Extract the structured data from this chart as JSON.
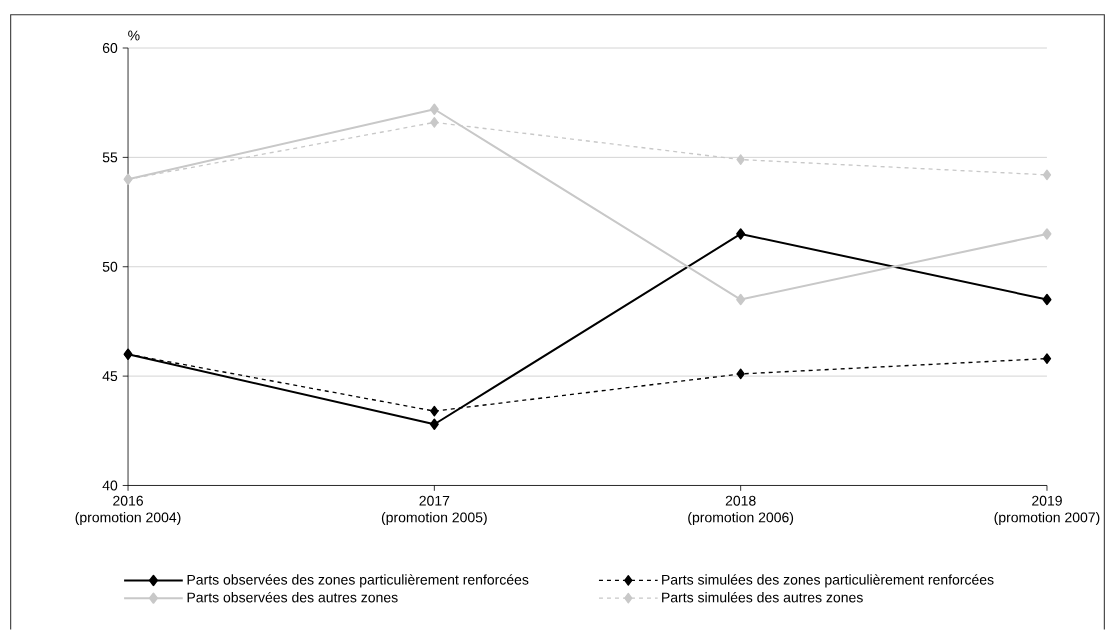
{
  "chart_data": {
    "type": "line",
    "ylabel": "%",
    "categories": [
      "2016\n(promotion 2004)",
      "2017\n(promotion 2005)",
      "2018\n(promotion 2006)",
      "2019\n(promotion 2007)"
    ],
    "ylim": [
      40,
      60
    ],
    "yticks": [
      40,
      45,
      50,
      55,
      60
    ],
    "grid": "y",
    "legend": "bottom",
    "marker": "diamond",
    "series": [
      {
        "name": "Parts observées des zones particulièrement renforcées",
        "color": "#000000",
        "line_style": "solid",
        "values": [
          46.0,
          42.8,
          51.5,
          48.5
        ]
      },
      {
        "name": "Parts simulées des zones particulièrement renforcées",
        "color": "#000000",
        "line_style": "dashed",
        "values": [
          46.0,
          43.4,
          45.1,
          45.8
        ]
      },
      {
        "name": "Parts observées des autres zones",
        "color": "#c8c8c8",
        "line_style": "solid",
        "values": [
          54.0,
          57.2,
          48.5,
          51.5
        ]
      },
      {
        "name": "Parts simulées des autres zones",
        "color": "#c8c8c8",
        "line_style": "dashed",
        "values": [
          54.0,
          56.6,
          54.9,
          54.2
        ]
      }
    ]
  }
}
